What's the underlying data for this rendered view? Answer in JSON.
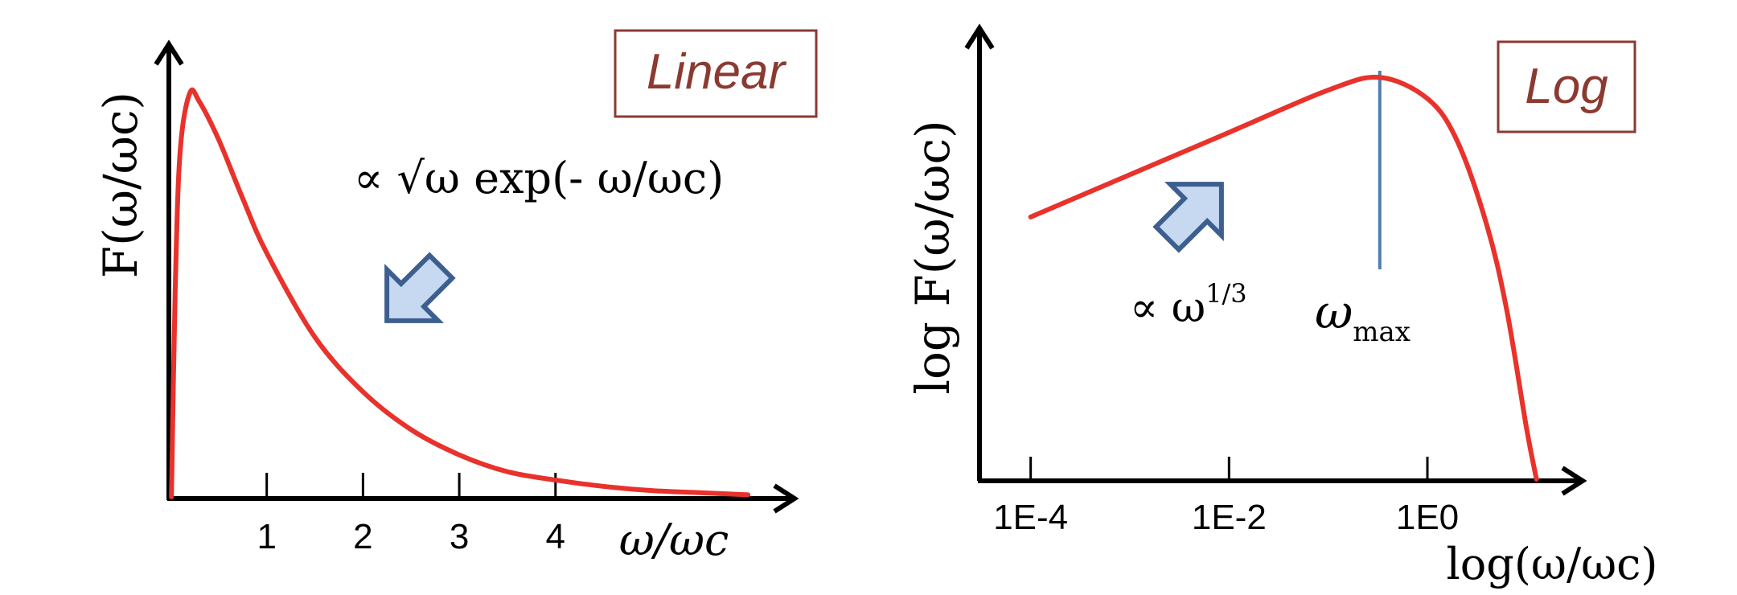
{
  "chart_data": [
    {
      "type": "line",
      "title": "Linear",
      "xlabel": "ω/ωc",
      "ylabel": "F(ω/ωc)",
      "x_ticks": [
        "1",
        "2",
        "3",
        "4"
      ],
      "xlim": [
        0,
        6.5
      ],
      "ylim": [
        0,
        1.0
      ],
      "annotation": "∝ √ω exp(- ω/ωc)",
      "series": [
        {
          "color": "#e8322b",
          "x": [
            0.01,
            0.05,
            0.1,
            0.2,
            0.3,
            0.5,
            0.75,
            1.0,
            1.5,
            2.0,
            2.5,
            3.0,
            3.5,
            4.0,
            4.5,
            5.0,
            5.5,
            6.0
          ],
          "y": [
            0.0,
            0.5,
            0.82,
            0.96,
            0.94,
            0.85,
            0.71,
            0.58,
            0.38,
            0.25,
            0.16,
            0.1,
            0.06,
            0.04,
            0.025,
            0.015,
            0.01,
            0.005
          ]
        }
      ]
    },
    {
      "type": "line",
      "title": "Log",
      "xlabel": "log(ω/ωc)",
      "ylabel": "log F(ω/ωc)",
      "x_ticks": [
        "1E-4",
        "1E-2",
        "1E0"
      ],
      "xlim": [
        -4.5,
        1.5
      ],
      "annotation": "∝ ω",
      "annotation_exponent": "1/3",
      "marker_label": "ω",
      "marker_label_sub": "max",
      "marker_x": -0.48,
      "series": [
        {
          "color": "#e8322b",
          "x": [
            -4.0,
            -3.0,
            -2.0,
            -1.0,
            -0.48,
            0.0,
            0.3,
            0.6,
            0.8,
            1.0,
            1.1
          ],
          "y": [
            0.62,
            0.72,
            0.82,
            0.92,
            0.95,
            0.9,
            0.8,
            0.6,
            0.4,
            0.12,
            0.0
          ]
        }
      ]
    }
  ]
}
